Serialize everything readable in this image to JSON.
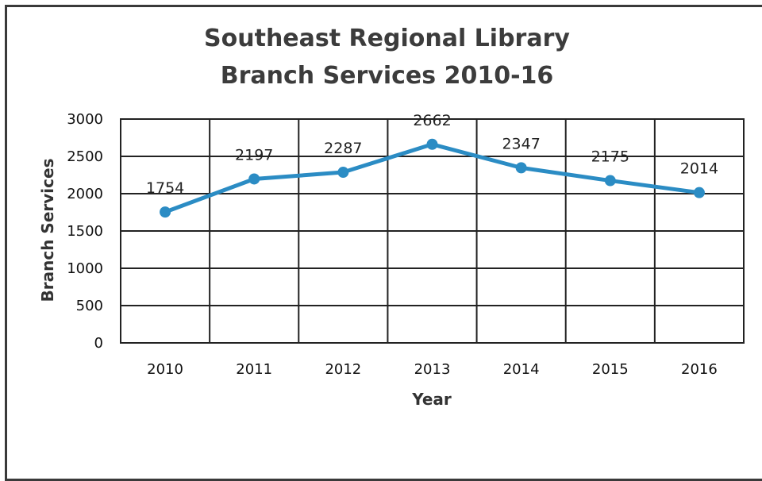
{
  "chart_data": {
    "type": "line",
    "title": "Southeast Regional Library",
    "subtitle": "Branch Services 2010-16",
    "xlabel": "Year",
    "ylabel": "Branch Services",
    "categories": [
      "2010",
      "2011",
      "2012",
      "2013",
      "2014",
      "2015",
      "2016"
    ],
    "series": [
      {
        "values": [
          1754,
          2197,
          2287,
          2662,
          2347,
          2175,
          2014
        ]
      }
    ],
    "data_labels": [
      "1754",
      "2197",
      "2287",
      "2662",
      "2347",
      "2175",
      "2014"
    ],
    "y_ticks": [
      "0",
      "500",
      "1000",
      "1500",
      "2000",
      "2500",
      "3000"
    ],
    "ylim": [
      0,
      3000
    ],
    "grid": true,
    "legend": "none",
    "line_color": "#2b8cc4"
  }
}
